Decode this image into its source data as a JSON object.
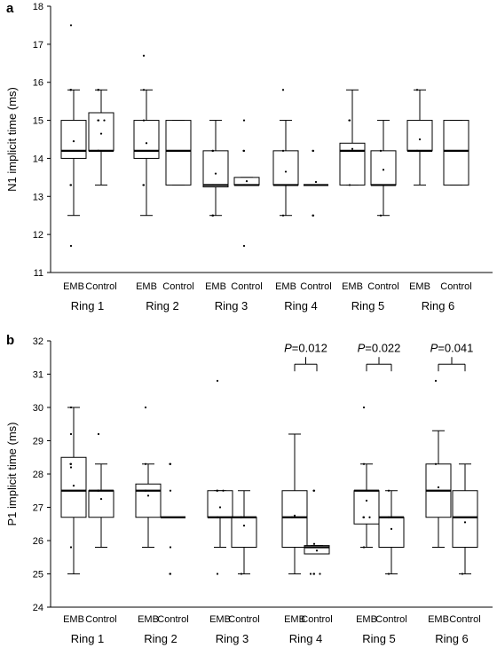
{
  "chart_data": [
    {
      "panel": "a",
      "type": "box",
      "ylabel": "N1 implicit time (ms)",
      "ylim": [
        11,
        18
      ],
      "yticks": [
        11,
        12,
        13,
        14,
        15,
        16,
        17,
        18
      ],
      "groups": [
        "Ring 1",
        "Ring 2",
        "Ring 3",
        "Ring 4",
        "Ring 5",
        "Ring 6"
      ],
      "series_labels": [
        "EMB",
        "Control"
      ],
      "boxes": [
        {
          "group": 0,
          "series": 0,
          "min": 12.5,
          "q1": 14.0,
          "median": 14.2,
          "q3": 15.0,
          "max": 15.8,
          "mean": 14.45,
          "points": [
            17.5,
            11.7,
            13.3,
            13.3,
            15.8,
            15.8
          ]
        },
        {
          "group": 0,
          "series": 1,
          "min": 13.3,
          "q1": 14.2,
          "median": 14.2,
          "q3": 15.2,
          "max": 15.8,
          "mean": 14.65,
          "points": [
            15.8,
            15.8,
            15.0,
            15.0,
            15.0,
            14.2,
            14.2
          ]
        },
        {
          "group": 1,
          "series": 0,
          "min": 12.5,
          "q1": 14.0,
          "median": 14.2,
          "q3": 15.0,
          "max": 15.8,
          "mean": 14.4,
          "points": [
            16.7,
            13.3,
            13.3,
            15.8,
            15.0
          ]
        },
        {
          "group": 1,
          "series": 1,
          "min": 13.3,
          "q1": 13.3,
          "median": 14.2,
          "q3": 15.0,
          "max": 15.0,
          "mean": null,
          "points": []
        },
        {
          "group": 2,
          "series": 0,
          "min": 12.5,
          "q1": 13.25,
          "median": 13.3,
          "q3": 14.2,
          "max": 15.0,
          "mean": 13.6,
          "points": [
            14.2,
            14.2,
            12.5,
            12.5,
            13.3
          ]
        },
        {
          "group": 2,
          "series": 1,
          "min": 13.3,
          "q1": 13.3,
          "median": 13.3,
          "q3": 13.5,
          "max": 13.5,
          "mean": 13.4,
          "points": [
            15.0,
            14.2,
            14.2,
            11.7,
            13.3
          ]
        },
        {
          "group": 3,
          "series": 0,
          "min": 12.5,
          "q1": 13.3,
          "median": 13.3,
          "q3": 14.2,
          "max": 15.0,
          "mean": 13.65,
          "points": [
            15.8,
            14.2,
            12.5
          ]
        },
        {
          "group": 3,
          "series": 1,
          "min": 13.3,
          "q1": 13.3,
          "median": 13.3,
          "q3": 13.3,
          "max": 13.3,
          "mean": 13.38,
          "points": [
            14.2,
            14.2,
            12.5,
            12.5
          ]
        },
        {
          "group": 4,
          "series": 0,
          "min": 13.3,
          "q1": 13.3,
          "median": 14.2,
          "q3": 14.4,
          "max": 15.8,
          "mean": 14.25,
          "points": [
            15.0,
            15.0,
            13.3
          ]
        },
        {
          "group": 4,
          "series": 1,
          "min": 12.5,
          "q1": 13.3,
          "median": 13.3,
          "q3": 14.2,
          "max": 15.0,
          "mean": 13.7,
          "points": [
            12.5,
            14.2
          ]
        },
        {
          "group": 5,
          "series": 0,
          "min": 13.3,
          "q1": 14.2,
          "median": 14.2,
          "q3": 15.0,
          "max": 15.8,
          "mean": 14.5,
          "points": [
            15.8,
            14.2
          ]
        },
        {
          "group": 5,
          "series": 1,
          "min": 13.3,
          "q1": 13.3,
          "median": 14.2,
          "q3": 15.0,
          "max": 15.0,
          "mean": null,
          "points": []
        }
      ],
      "annotations": []
    },
    {
      "panel": "b",
      "type": "box",
      "ylabel": "P1 implicit time (ms)",
      "ylim": [
        24,
        32
      ],
      "yticks": [
        24,
        25,
        26,
        27,
        28,
        29,
        30,
        31,
        32
      ],
      "groups": [
        "Ring 1",
        "Ring 2",
        "Ring 3",
        "Ring 4",
        "Ring 5",
        "Ring 6"
      ],
      "series_labels": [
        "EMB",
        "Control"
      ],
      "boxes": [
        {
          "group": 0,
          "series": 0,
          "min": 25.0,
          "q1": 26.7,
          "median": 27.5,
          "q3": 28.5,
          "max": 30.0,
          "mean": 27.65,
          "points": [
            30.0,
            29.2,
            28.3,
            28.3,
            28.2,
            25.8
          ]
        },
        {
          "group": 0,
          "series": 1,
          "min": 25.8,
          "q1": 26.7,
          "median": 27.5,
          "q3": 27.5,
          "max": 28.3,
          "mean": 27.25,
          "points": [
            29.2,
            27.5,
            27.5
          ]
        },
        {
          "group": 1,
          "series": 0,
          "min": 25.8,
          "q1": 26.7,
          "median": 27.5,
          "q3": 27.7,
          "max": 28.3,
          "mean": 27.35,
          "points": [
            30.0,
            28.3,
            27.5
          ]
        },
        {
          "group": 1,
          "series": 1,
          "min": 26.7,
          "q1": 26.7,
          "median": 26.7,
          "q3": 26.7,
          "max": 26.7,
          "mean": null,
          "points": [
            28.3,
            28.3,
            27.5,
            25.8,
            25.0,
            25.0
          ]
        },
        {
          "group": 2,
          "series": 0,
          "min": 25.8,
          "q1": 26.7,
          "median": 26.7,
          "q3": 27.5,
          "max": 27.5,
          "mean": 27.0,
          "points": [
            30.8,
            27.5,
            27.5,
            27.5,
            26.7,
            25.0
          ]
        },
        {
          "group": 2,
          "series": 1,
          "min": 25.0,
          "q1": 25.8,
          "median": 26.7,
          "q3": 26.7,
          "max": 27.5,
          "mean": 26.45,
          "points": [
            26.7,
            26.7,
            25.0
          ]
        },
        {
          "group": 3,
          "series": 0,
          "min": 25.0,
          "q1": 25.8,
          "median": 26.7,
          "q3": 27.5,
          "max": 29.2,
          "mean": 26.75,
          "points": [
            26.7
          ]
        },
        {
          "group": 3,
          "series": 1,
          "min": 25.6,
          "q1": 25.6,
          "median": 25.8,
          "q3": 25.85,
          "max": 25.85,
          "mean": 25.7,
          "points": [
            27.5,
            27.5,
            25.0,
            25.0,
            25.0,
            25.0,
            25.9
          ]
        },
        {
          "group": 4,
          "series": 0,
          "min": 25.8,
          "q1": 26.5,
          "median": 27.5,
          "q3": 27.5,
          "max": 28.3,
          "mean": 27.2,
          "points": [
            30.0,
            28.3,
            26.7,
            26.7,
            26.7,
            25.8
          ]
        },
        {
          "group": 4,
          "series": 1,
          "min": 25.0,
          "q1": 25.8,
          "median": 26.7,
          "q3": 26.7,
          "max": 27.5,
          "mean": 26.35,
          "points": [
            27.5,
            26.7,
            25.0
          ]
        },
        {
          "group": 5,
          "series": 0,
          "min": 25.8,
          "q1": 26.7,
          "median": 27.5,
          "q3": 28.3,
          "max": 29.3,
          "mean": 27.6,
          "points": [
            30.8,
            28.3
          ]
        },
        {
          "group": 5,
          "series": 1,
          "min": 25.0,
          "q1": 25.8,
          "median": 26.7,
          "q3": 27.5,
          "max": 28.3,
          "mean": 26.55,
          "points": [
            25.0
          ]
        }
      ],
      "annotations": [
        {
          "group": 3,
          "label_italic": "P",
          "label_rest": "=0.012",
          "y": 31.3
        },
        {
          "group": 4,
          "label_italic": "P",
          "label_rest": "=0.022",
          "y": 31.3
        },
        {
          "group": 5,
          "label_italic": "P",
          "label_rest": "=0.041",
          "y": 31.3
        }
      ]
    }
  ]
}
